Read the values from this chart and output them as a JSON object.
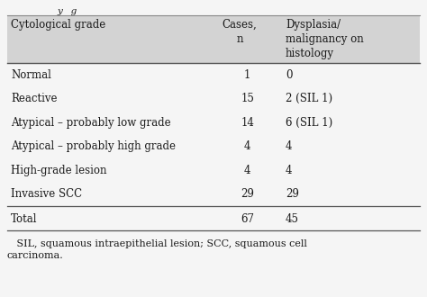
{
  "header": [
    "Cytological grade",
    "Cases,\nn",
    "Dysplasia/\nmalignancy on\nhistology"
  ],
  "rows": [
    [
      "Normal",
      "1",
      "0"
    ],
    [
      "Reactive",
      "15",
      "2 (SIL 1)"
    ],
    [
      "Atypical – probably low grade",
      "14",
      "6 (SIL 1)"
    ],
    [
      "Atypical – probably high grade",
      "4",
      "4"
    ],
    [
      "High-grade lesion",
      "4",
      "4"
    ],
    [
      "Invasive SCC",
      "29",
      "29"
    ]
  ],
  "total_row": [
    "Total",
    "67",
    "45"
  ],
  "footnote": "   SIL, squamous intraepithelial lesion; SCC, squamous cell\ncarcinoma.",
  "header_bg": "#d3d3d3",
  "body_bg": "#f5f5f5",
  "text_color": "#1a1a1a",
  "font_size": 8.5,
  "line_color": "#888888",
  "title_text": "y   g"
}
